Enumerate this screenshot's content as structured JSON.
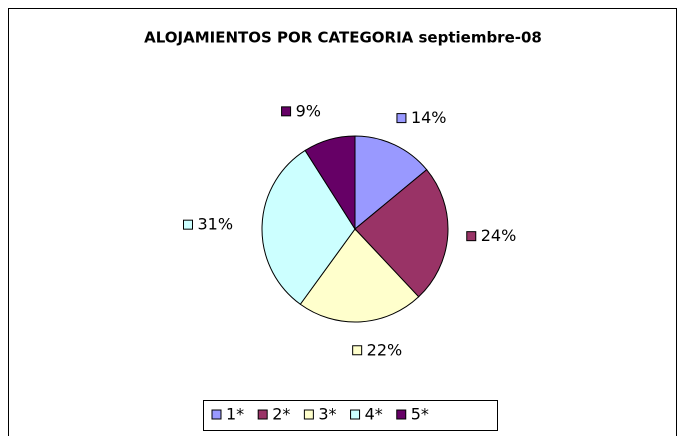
{
  "chart_data": {
    "type": "pie",
    "title": "ALOJAMIENTOS POR CATEGORIA septiembre-08",
    "categories": [
      "1*",
      "2*",
      "3*",
      "4*",
      "5*"
    ],
    "values": [
      14,
      24,
      22,
      31,
      9
    ],
    "value_labels": [
      "14%",
      "24%",
      "22%",
      "31%",
      "9%"
    ],
    "colors": [
      "#9999ff",
      "#993366",
      "#ffffcc",
      "#ccffff",
      "#660066"
    ],
    "legend": "bottom"
  }
}
